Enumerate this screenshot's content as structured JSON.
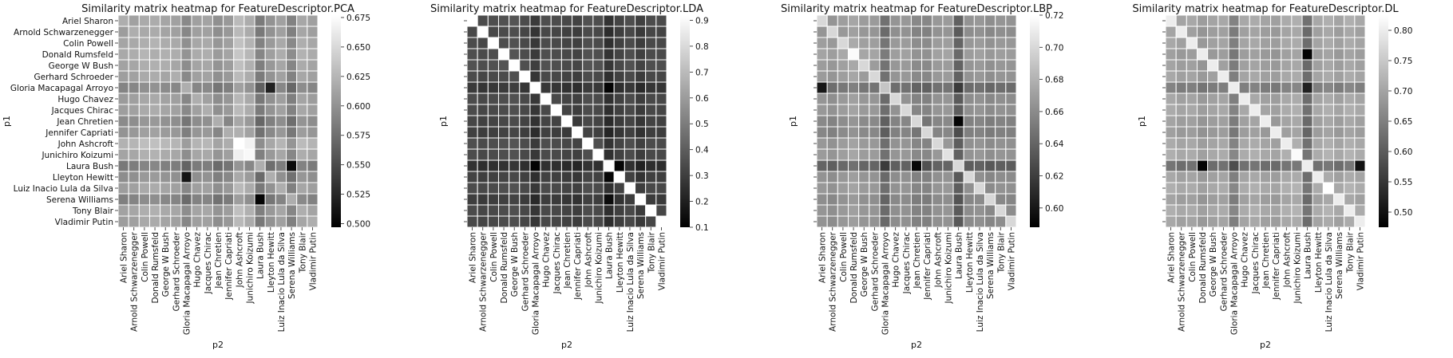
{
  "chart_data": [
    {
      "type": "heatmap",
      "title": "Similarity matrix heatmap for FeatureDescriptor.PCA",
      "xlabel": "p2",
      "ylabel": "p1",
      "show_y_labels": true,
      "colorbar": {
        "min": 0.497,
        "max": 0.677,
        "ticks": [
          "0.500",
          "0.525",
          "0.550",
          "0.575",
          "0.600",
          "0.625",
          "0.650",
          "0.675"
        ]
      },
      "row_base": [
        0.612,
        0.61,
        0.622,
        0.628,
        0.618,
        0.612,
        0.575,
        0.608,
        0.612,
        0.585,
        0.598,
        0.64,
        0.62,
        0.56,
        0.588,
        0.61,
        0.57,
        0.618,
        0.61
      ],
      "col_base": [
        0.605,
        0.61,
        0.622,
        0.625,
        0.615,
        0.61,
        0.575,
        0.608,
        0.612,
        0.585,
        0.598,
        0.645,
        0.625,
        0.555,
        0.59,
        0.61,
        0.565,
        0.618,
        0.608
      ],
      "diag": 0.62,
      "highlights": [
        [
          11,
          11,
          0.677
        ],
        [
          12,
          12,
          0.672
        ],
        [
          11,
          12,
          0.668
        ],
        [
          12,
          11,
          0.666
        ],
        [
          16,
          13,
          0.5
        ],
        [
          13,
          16,
          0.505
        ],
        [
          14,
          6,
          0.512
        ],
        [
          6,
          14,
          0.52
        ]
      ]
    },
    {
      "type": "heatmap",
      "title": "Similarity matrix heatmap for FeatureDescriptor.LDA",
      "xlabel": "p2",
      "ylabel": "p1",
      "show_y_labels": false,
      "colorbar": {
        "min": 0.1,
        "max": 0.92,
        "ticks": [
          "0.1",
          "0.2",
          "0.3",
          "0.4",
          "0.5",
          "0.6",
          "0.7",
          "0.8",
          "0.9"
        ]
      },
      "row_base": [
        0.36,
        0.32,
        0.34,
        0.36,
        0.38,
        0.33,
        0.22,
        0.34,
        0.33,
        0.3,
        0.27,
        0.36,
        0.34,
        0.17,
        0.28,
        0.34,
        0.25,
        0.33,
        0.32
      ],
      "col_base": [
        0.35,
        0.32,
        0.34,
        0.36,
        0.38,
        0.33,
        0.22,
        0.34,
        0.33,
        0.3,
        0.27,
        0.36,
        0.34,
        0.17,
        0.28,
        0.34,
        0.25,
        0.33,
        0.32
      ],
      "diag": 0.92,
      "highlights": [
        [
          6,
          13,
          0.11
        ],
        [
          13,
          6,
          0.11
        ],
        [
          14,
          13,
          0.12
        ],
        [
          13,
          14,
          0.12
        ],
        [
          16,
          13,
          0.14
        ]
      ]
    },
    {
      "type": "heatmap",
      "title": "Similarity matrix heatmap for FeatureDescriptor.LBP",
      "xlabel": "p2",
      "ylabel": "p1",
      "show_y_labels": false,
      "colorbar": {
        "min": 0.588,
        "max": 0.72,
        "ticks": [
          "0.60",
          "0.62",
          "0.64",
          "0.66",
          "0.68",
          "0.70",
          "0.72"
        ]
      },
      "row_base": [
        0.668,
        0.662,
        0.672,
        0.678,
        0.67,
        0.668,
        0.628,
        0.662,
        0.665,
        0.65,
        0.648,
        0.665,
        0.668,
        0.612,
        0.66,
        0.665,
        0.655,
        0.662,
        0.66
      ],
      "col_base": [
        0.668,
        0.662,
        0.672,
        0.68,
        0.67,
        0.668,
        0.625,
        0.662,
        0.665,
        0.65,
        0.648,
        0.665,
        0.668,
        0.608,
        0.66,
        0.665,
        0.655,
        0.662,
        0.66
      ],
      "diag": 0.7,
      "highlights": [
        [
          3,
          3,
          0.718
        ],
        [
          12,
          12,
          0.705
        ],
        [
          14,
          14,
          0.7
        ],
        [
          6,
          6,
          0.69
        ],
        [
          9,
          13,
          0.59
        ],
        [
          13,
          9,
          0.592
        ],
        [
          6,
          0,
          0.6
        ]
      ]
    },
    {
      "type": "heatmap",
      "title": "Similarity matrix heatmap for FeatureDescriptor.DL",
      "xlabel": "p2",
      "ylabel": "p1",
      "show_y_labels": false,
      "colorbar": {
        "min": 0.475,
        "max": 0.825,
        "ticks": [
          "0.50",
          "0.55",
          "0.60",
          "0.65",
          "0.70",
          "0.75",
          "0.80"
        ]
      },
      "row_base": [
        0.71,
        0.69,
        0.7,
        0.68,
        0.69,
        0.7,
        0.6,
        0.7,
        0.71,
        0.69,
        0.68,
        0.71,
        0.72,
        0.56,
        0.7,
        0.72,
        0.69,
        0.72,
        0.7
      ],
      "col_base": [
        0.71,
        0.69,
        0.7,
        0.67,
        0.69,
        0.7,
        0.6,
        0.7,
        0.71,
        0.69,
        0.68,
        0.71,
        0.72,
        0.55,
        0.7,
        0.72,
        0.69,
        0.72,
        0.7
      ],
      "diag": 0.8,
      "highlights": [
        [
          3,
          13,
          0.48
        ],
        [
          13,
          3,
          0.48
        ],
        [
          13,
          18,
          0.5
        ],
        [
          6,
          13,
          0.52
        ],
        [
          15,
          15,
          0.825
        ],
        [
          12,
          12,
          0.82
        ]
      ]
    }
  ],
  "people": [
    "Ariel Sharon",
    "Arnold Schwarzenegger",
    "Colin Powell",
    "Donald Rumsfeld",
    "George W Bush",
    "Gerhard Schroeder",
    "Gloria Macapagal Arroyo",
    "Hugo Chavez",
    "Jacques Chirac",
    "Jean Chretien",
    "Jennifer Capriati",
    "John Ashcroft",
    "Junichiro Koizumi",
    "Laura Bush",
    "Lleyton Hewitt",
    "Luiz Inacio Lula da Silva",
    "Serena Williams",
    "Tony Blair",
    "Vladimir Putin"
  ]
}
